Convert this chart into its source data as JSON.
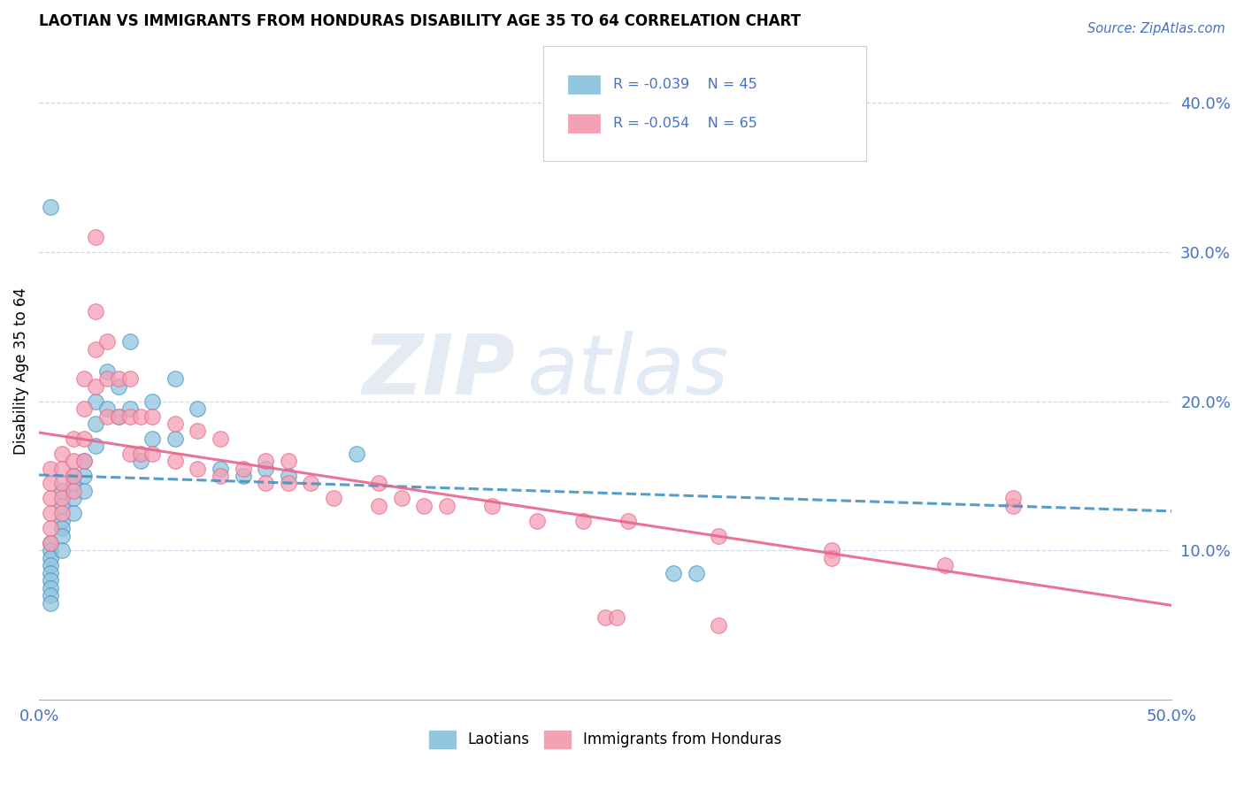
{
  "title": "LAOTIAN VS IMMIGRANTS FROM HONDURAS DISABILITY AGE 35 TO 64 CORRELATION CHART",
  "source": "Source: ZipAtlas.com",
  "ylabel": "Disability Age 35 to 64",
  "ytick_labels": [
    "10.0%",
    "20.0%",
    "30.0%",
    "40.0%"
  ],
  "ytick_values": [
    0.1,
    0.2,
    0.3,
    0.4
  ],
  "xlim": [
    0.0,
    0.5
  ],
  "ylim": [
    0.0,
    0.44
  ],
  "color_blue": "#92c5de",
  "color_pink": "#f4a0b5",
  "color_blue_dark": "#4393c3",
  "color_pink_dark": "#e8648c",
  "watermark_zip": "ZIP",
  "watermark_atlas": "atlas",
  "laotian_x": [
    0.005,
    0.005,
    0.005,
    0.005,
    0.005,
    0.005,
    0.005,
    0.005,
    0.005,
    0.01,
    0.01,
    0.01,
    0.01,
    0.01,
    0.01,
    0.015,
    0.015,
    0.015,
    0.015,
    0.02,
    0.02,
    0.02,
    0.025,
    0.025,
    0.025,
    0.03,
    0.03,
    0.035,
    0.035,
    0.04,
    0.04,
    0.045,
    0.05,
    0.05,
    0.06,
    0.06,
    0.07,
    0.08,
    0.09,
    0.1,
    0.11,
    0.14,
    0.28,
    0.29,
    0.005
  ],
  "laotian_y": [
    0.105,
    0.1,
    0.095,
    0.09,
    0.085,
    0.08,
    0.075,
    0.07,
    0.065,
    0.14,
    0.13,
    0.12,
    0.115,
    0.11,
    0.1,
    0.15,
    0.145,
    0.135,
    0.125,
    0.16,
    0.15,
    0.14,
    0.2,
    0.185,
    0.17,
    0.22,
    0.195,
    0.21,
    0.19,
    0.24,
    0.195,
    0.16,
    0.2,
    0.175,
    0.215,
    0.175,
    0.195,
    0.155,
    0.15,
    0.155,
    0.15,
    0.165,
    0.085,
    0.085,
    0.33
  ],
  "honduras_x": [
    0.005,
    0.005,
    0.005,
    0.005,
    0.005,
    0.005,
    0.01,
    0.01,
    0.01,
    0.01,
    0.01,
    0.015,
    0.015,
    0.015,
    0.015,
    0.02,
    0.02,
    0.02,
    0.02,
    0.025,
    0.025,
    0.025,
    0.03,
    0.03,
    0.03,
    0.035,
    0.035,
    0.04,
    0.04,
    0.04,
    0.045,
    0.045,
    0.05,
    0.05,
    0.06,
    0.06,
    0.07,
    0.07,
    0.08,
    0.08,
    0.09,
    0.1,
    0.1,
    0.11,
    0.11,
    0.12,
    0.13,
    0.15,
    0.15,
    0.16,
    0.17,
    0.18,
    0.2,
    0.22,
    0.24,
    0.26,
    0.3,
    0.35,
    0.35,
    0.4,
    0.43,
    0.025,
    0.3,
    0.43,
    0.25,
    0.255
  ],
  "honduras_y": [
    0.155,
    0.145,
    0.135,
    0.125,
    0.115,
    0.105,
    0.165,
    0.155,
    0.145,
    0.135,
    0.125,
    0.175,
    0.16,
    0.15,
    0.14,
    0.215,
    0.195,
    0.175,
    0.16,
    0.26,
    0.235,
    0.21,
    0.24,
    0.215,
    0.19,
    0.215,
    0.19,
    0.215,
    0.19,
    0.165,
    0.19,
    0.165,
    0.19,
    0.165,
    0.185,
    0.16,
    0.18,
    0.155,
    0.175,
    0.15,
    0.155,
    0.16,
    0.145,
    0.16,
    0.145,
    0.145,
    0.135,
    0.145,
    0.13,
    0.135,
    0.13,
    0.13,
    0.13,
    0.12,
    0.12,
    0.12,
    0.11,
    0.1,
    0.095,
    0.09,
    0.13,
    0.31,
    0.05,
    0.135,
    0.055,
    0.055
  ]
}
